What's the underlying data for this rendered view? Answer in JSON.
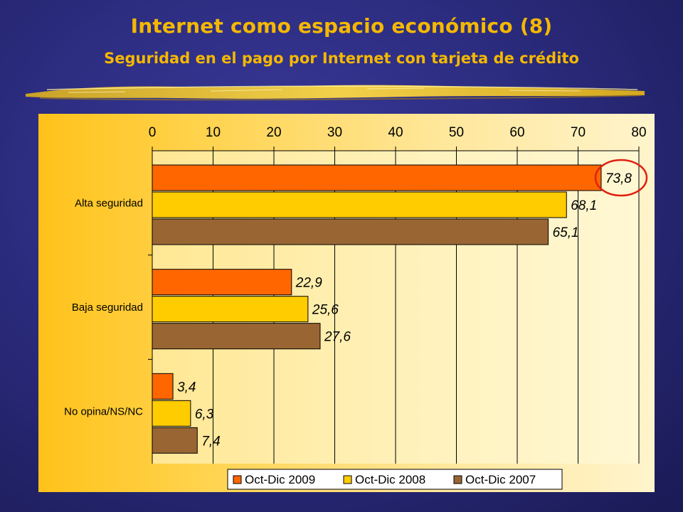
{
  "title": "Internet como espacio económico (8)",
  "subtitle": "Seguridad en el pago por Internet con tarjeta de crédito",
  "chart_data": {
    "type": "bar",
    "orientation": "horizontal",
    "categories": [
      "Alta seguridad",
      "Baja seguridad",
      "No opina/NS/NC"
    ],
    "series": [
      {
        "name": "Oct-Dic 2009",
        "color": "#ff6600",
        "values": [
          73.8,
          22.9,
          3.4
        ],
        "labels": [
          "73,8",
          "22,9",
          "3,4"
        ]
      },
      {
        "name": "Oct-Dic 2008",
        "color": "#ffcc00",
        "values": [
          68.1,
          25.6,
          6.3
        ],
        "labels": [
          "68,1",
          "25,6",
          "6,3"
        ]
      },
      {
        "name": "Oct-Dic 2007",
        "color": "#996633",
        "values": [
          65.1,
          27.6,
          7.4
        ],
        "labels": [
          "65,1",
          "27,6",
          "7,4"
        ]
      }
    ],
    "xlim": [
      0,
      80
    ],
    "xticks": [
      "0",
      "10",
      "20",
      "30",
      "40",
      "50",
      "60",
      "70",
      "80"
    ],
    "x_axis_position": "top",
    "grid": true,
    "legend_position": "bottom",
    "highlight": {
      "series": 0,
      "category": 0,
      "shape": "red-circle"
    }
  }
}
